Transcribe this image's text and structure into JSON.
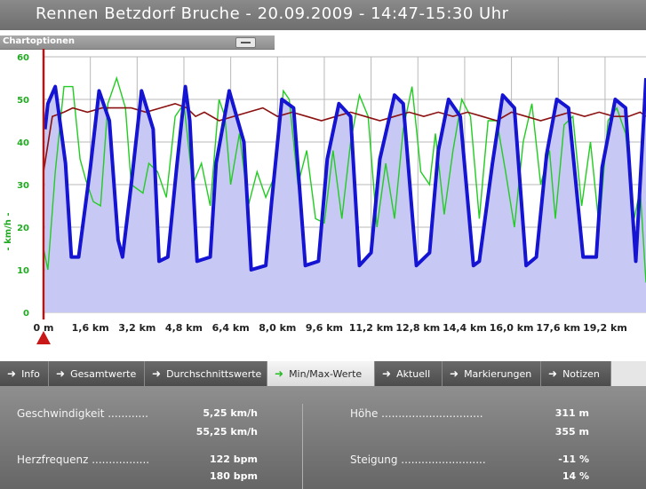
{
  "window": {
    "title": "Rennen Betzdorf Bruche - 20.09.2009 - 14:47-15:30 Uhr"
  },
  "chart_options": {
    "label": "Chartoptionen"
  },
  "chart_data": {
    "type": "line",
    "ylabel": "- km/h -",
    "ylim": [
      0,
      60
    ],
    "yticks": [
      "0",
      "10",
      "20",
      "30",
      "40",
      "50",
      "60"
    ],
    "xticks": [
      "0 m",
      "1,6 km",
      "3,2 km",
      "4,8 km",
      "6,4 km",
      "8,0 km",
      "9,6 km",
      "11,2 km",
      "12,8 km",
      "14,4 km",
      "16,0 km",
      "17,6 km",
      "19,2 km"
    ],
    "xlim": [
      0,
      20.6
    ],
    "grid": true,
    "colors": {
      "blue": "#1414d2",
      "green": "#22cc22",
      "darkred": "#8b1010",
      "fill": "#c8c8f4"
    },
    "series": [
      {
        "color": "blue",
        "x": [
          0.05,
          0.15,
          0.4,
          0.75,
          0.95,
          1.2,
          1.6,
          1.9,
          2.25,
          2.55,
          2.7,
          3.0,
          3.35,
          3.75,
          3.95,
          4.25,
          4.55,
          4.85,
          5.0,
          5.25,
          5.7,
          5.9,
          6.35,
          6.85,
          7.1,
          7.6,
          7.8,
          8.15,
          8.55,
          8.95,
          9.4,
          9.7,
          10.1,
          10.5,
          10.8,
          11.2,
          11.5,
          12.0,
          12.3,
          12.75,
          13.2,
          13.5,
          13.85,
          14.25,
          14.7,
          14.9,
          15.35,
          15.7,
          16.1,
          16.5,
          16.85,
          17.2,
          17.55,
          17.95,
          18.45,
          18.9,
          19.1,
          19.55,
          19.9,
          20.25,
          20.6
        ],
        "values": [
          43,
          49,
          53,
          35,
          13,
          13,
          34,
          52,
          45,
          17,
          13,
          30,
          52,
          43,
          12,
          13,
          34,
          53,
          45,
          12,
          13,
          35,
          52,
          40,
          10,
          11,
          26,
          50,
          48,
          11,
          12,
          36,
          49,
          46,
          11,
          14,
          36,
          51,
          49,
          11,
          14,
          38,
          50,
          46,
          11,
          12,
          35,
          51,
          48,
          11,
          13,
          37,
          50,
          48,
          13,
          13,
          34,
          50,
          48,
          12,
          55
        ]
      },
      {
        "color": "green",
        "x": [
          0.0,
          0.15,
          0.4,
          0.7,
          1.0,
          1.25,
          1.45,
          1.7,
          1.95,
          2.2,
          2.5,
          2.8,
          3.0,
          3.4,
          3.6,
          3.9,
          4.2,
          4.5,
          4.8,
          5.1,
          5.4,
          5.7,
          6.0,
          6.2,
          6.4,
          6.7,
          7.0,
          7.3,
          7.6,
          7.9,
          8.2,
          8.4,
          8.7,
          9.0,
          9.3,
          9.6,
          9.9,
          10.2,
          10.5,
          10.8,
          11.1,
          11.4,
          11.7,
          12.0,
          12.3,
          12.6,
          12.9,
          13.2,
          13.4,
          13.7,
          14.0,
          14.3,
          14.6,
          14.9,
          15.2,
          15.5,
          15.8,
          16.1,
          16.4,
          16.7,
          17.0,
          17.3,
          17.5,
          17.8,
          18.1,
          18.4,
          18.7,
          19.0,
          19.3,
          19.6,
          19.9,
          20.2,
          20.4,
          20.6
        ],
        "values": [
          15,
          10,
          33,
          53,
          53,
          36,
          31,
          26,
          25,
          49,
          55,
          48,
          30,
          28,
          35,
          33,
          27,
          46,
          49,
          30,
          35,
          25,
          50,
          46,
          30,
          42,
          25,
          33,
          27,
          32,
          52,
          50,
          30,
          38,
          22,
          21,
          38,
          22,
          40,
          51,
          46,
          20,
          35,
          22,
          43,
          53,
          33,
          30,
          42,
          23,
          38,
          50,
          46,
          22,
          45,
          45,
          33,
          20,
          40,
          49,
          30,
          38,
          22,
          44,
          46,
          25,
          40,
          20,
          45,
          48,
          42,
          22,
          29,
          7
        ]
      },
      {
        "color": "darkred",
        "x": [
          0.0,
          0.3,
          0.7,
          1.0,
          1.5,
          2.0,
          2.5,
          3.0,
          3.5,
          4.0,
          4.5,
          4.9,
          5.2,
          5.5,
          6.0,
          6.5,
          7.0,
          7.5,
          8.0,
          8.5,
          9.0,
          9.5,
          10.0,
          10.5,
          11.0,
          11.5,
          12.0,
          12.5,
          13.0,
          13.5,
          14.0,
          14.5,
          15.0,
          15.5,
          16.0,
          16.5,
          17.0,
          17.5,
          18.0,
          18.5,
          19.0,
          19.5,
          20.0,
          20.4,
          20.6
        ],
        "values": [
          33,
          46,
          47,
          48,
          47,
          48,
          48,
          48,
          47,
          48,
          49,
          48,
          46,
          47,
          45,
          46,
          47,
          48,
          46,
          47,
          46,
          45,
          46,
          47,
          46,
          45,
          46,
          47,
          46,
          47,
          46,
          47,
          46,
          45,
          47,
          46,
          45,
          46,
          47,
          46,
          47,
          46,
          46,
          47,
          46
        ]
      }
    ]
  },
  "tabs": [
    {
      "label": "Info",
      "active": false
    },
    {
      "label": "Gesamtwerte",
      "active": false
    },
    {
      "label": "Durchschnittswerte",
      "active": false
    },
    {
      "label": "Min/Max-Werte",
      "active": true
    },
    {
      "label": "Aktuell",
      "active": false
    },
    {
      "label": "Markierungen",
      "active": false
    },
    {
      "label": "Notizen",
      "active": false
    }
  ],
  "stats": {
    "speed": {
      "label": "Geschwindigkeit ............",
      "min": "5,25 km/h",
      "max": "55,25 km/h"
    },
    "heart": {
      "label": "Herzfrequenz .................",
      "min": "122 bpm",
      "max": "180 bpm"
    },
    "height": {
      "label": "Höhe ..............................",
      "min": "311 m",
      "max": "355 m"
    },
    "slope": {
      "label": "Steigung .........................",
      "min": "-11 %",
      "max": "14 %"
    }
  }
}
